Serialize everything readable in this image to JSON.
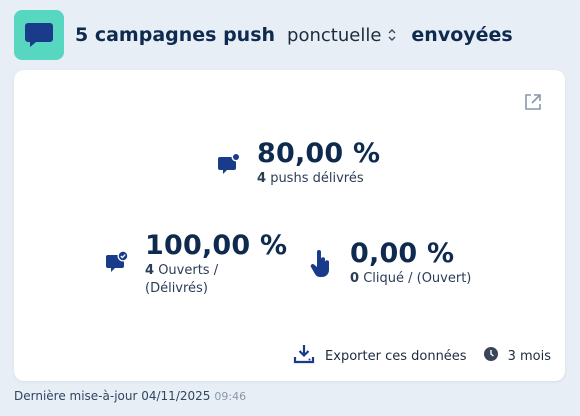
{
  "header": {
    "logo_icon": "chat-bubble-icon",
    "title_count": "5 campagnes push",
    "type_select": {
      "value": "ponctuelle"
    },
    "title_state": "envoyées"
  },
  "card": {
    "external_link_icon": "external-link-icon",
    "metrics": [
      {
        "icon": "message-dot-icon",
        "value": "80,00 %",
        "count": "4",
        "label": "pushs délivrés"
      },
      {
        "icon": "message-check-icon",
        "value": "100,00 %",
        "count": "4",
        "label_line1": "Ouverts /",
        "label_line2": "(Délivrés)"
      },
      {
        "icon": "pointer-hand-icon",
        "value": "0,00 %",
        "count": "0",
        "label": "Cliqué / (Ouvert)"
      }
    ],
    "export_label": "Exporter ces données",
    "period_label": "3 mois"
  },
  "footer": {
    "updated_label": "Dernière mise-à-jour 04/11/2025",
    "updated_time": "09:46"
  },
  "colors": {
    "background": "#e8eef5",
    "logo_bg": "#57d7bf",
    "primary_text": "#0f2a4f",
    "icon_blue": "#1a3a8a"
  }
}
